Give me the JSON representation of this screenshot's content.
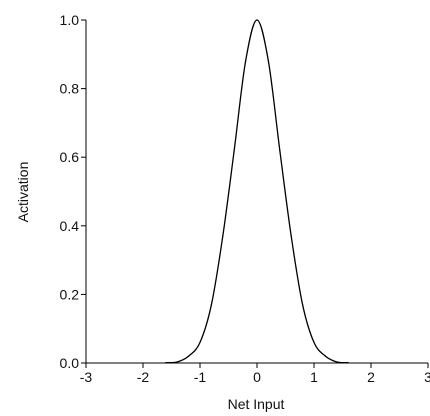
{
  "chart_data": {
    "type": "line",
    "title": "",
    "xlabel": "Net Input",
    "ylabel": "Activation",
    "xlim": [
      -3,
      3
    ],
    "ylim": [
      0,
      1
    ],
    "xticks": [
      -3,
      -2,
      -1,
      0,
      1,
      2,
      3
    ],
    "yticks": [
      0.0,
      0.2,
      0.4,
      0.6,
      0.8,
      1.0
    ],
    "xtick_labels": [
      "-3",
      "-2",
      "-1",
      "0",
      "1",
      "2",
      "3"
    ],
    "ytick_labels": [
      "0.0",
      "0.2",
      "0.4",
      "0.6",
      "0.8",
      "1.0"
    ],
    "grid": false,
    "series": [
      {
        "color": "#000000",
        "x": [
          -1.6,
          -1.4,
          -1.2,
          -1.0,
          -0.8,
          -0.6,
          -0.4,
          -0.2,
          0.0,
          0.2,
          0.4,
          0.6,
          0.8,
          1.0,
          1.2,
          1.4,
          1.6
        ],
        "y": [
          0.001,
          0.003,
          0.02,
          0.06,
          0.17,
          0.37,
          0.62,
          0.88,
          1.0,
          0.88,
          0.62,
          0.37,
          0.17,
          0.06,
          0.02,
          0.003,
          0.001
        ]
      }
    ]
  }
}
